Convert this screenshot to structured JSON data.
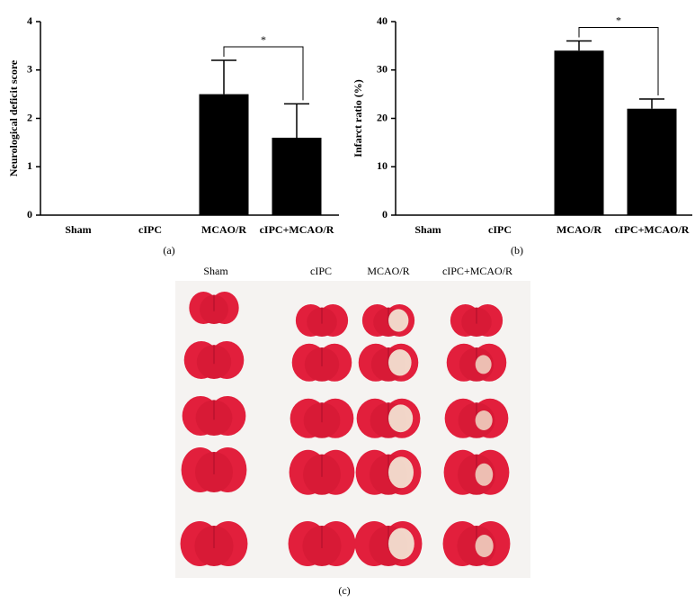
{
  "chart_data": [
    {
      "type": "bar",
      "y_label": "Neurological deficit score",
      "categories": [
        "Sham",
        "cIPC",
        "MCAO/R",
        "cIPC+MCAO/R"
      ],
      "values": [
        0,
        0,
        2.5,
        1.6
      ],
      "errors": [
        null,
        null,
        0.7,
        0.7
      ],
      "color": "#000000",
      "ylim": [
        0,
        4
      ],
      "yticks": [
        0,
        1,
        2,
        3,
        4
      ],
      "annotation": "*",
      "panel_label": "(a)"
    },
    {
      "type": "bar",
      "y_label": "Infarct ratio (%)",
      "categories": [
        "Sham",
        "cIPC",
        "MCAO/R",
        "cIPC+MCAO/R"
      ],
      "values": [
        0,
        0,
        34,
        22
      ],
      "errors": [
        null,
        null,
        2,
        2
      ],
      "color": "#000000",
      "ylim": [
        0,
        40
      ],
      "yticks": [
        0,
        10,
        20,
        30,
        40
      ],
      "annotation": "*",
      "panel_label": "(b)"
    }
  ],
  "photo": {
    "columns": [
      "Sham",
      "cIPC",
      "MCAO/R",
      "cIPC+MCAO/R"
    ],
    "panel_label": "(c)"
  }
}
